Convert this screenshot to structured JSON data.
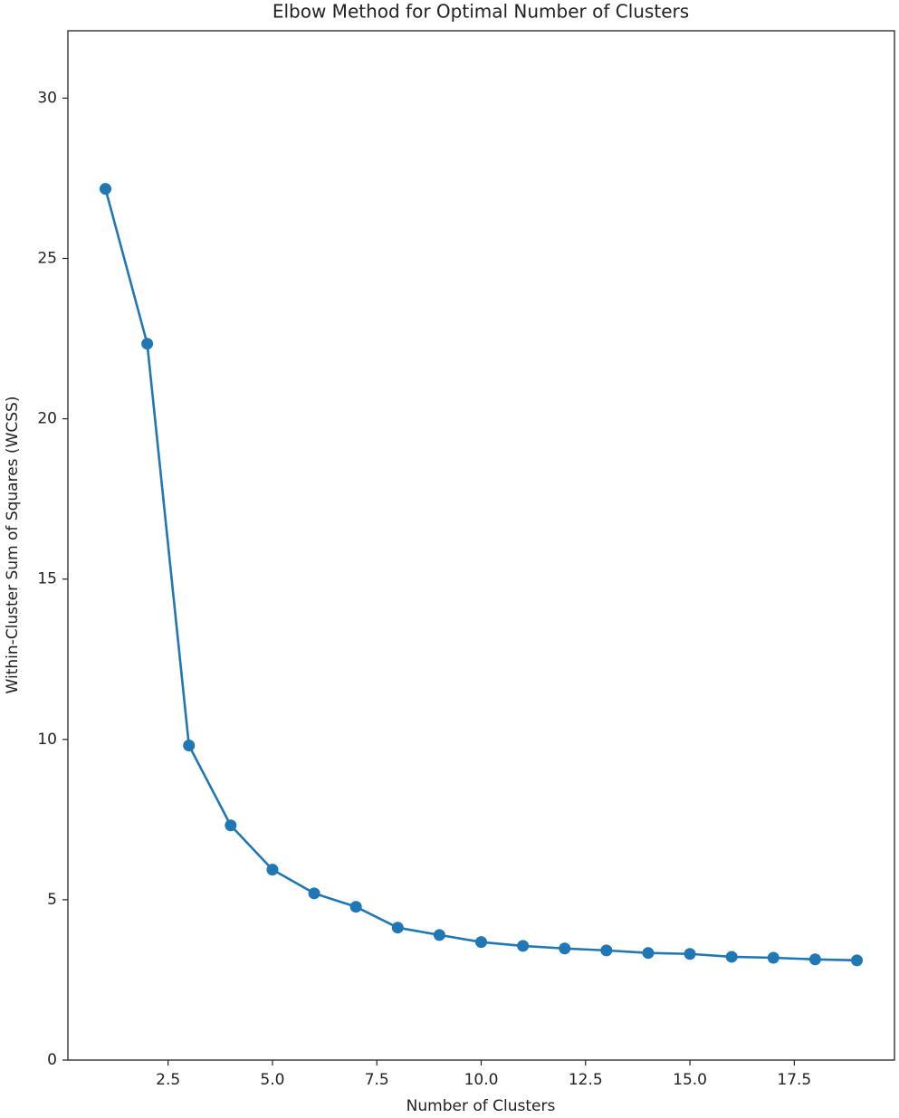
{
  "chart_data": {
    "type": "line",
    "title": "Elbow Method for Optimal Number of Clusters",
    "x_label": "Number of Clusters",
    "y_label": "Within-Cluster Sum of Squares (WCSS)",
    "x": [
      1,
      2,
      3,
      4,
      5,
      6,
      7,
      8,
      9,
      10,
      11,
      12,
      13,
      14,
      15,
      16,
      17,
      18,
      19
    ],
    "values": [
      27.17,
      22.34,
      9.81,
      7.32,
      5.94,
      5.2,
      4.78,
      4.13,
      3.9,
      3.68,
      3.56,
      3.48,
      3.42,
      3.34,
      3.31,
      3.22,
      3.19,
      3.14,
      3.11
    ],
    "color": "#1f77b4",
    "xlim": [
      0.1,
      19.9
    ],
    "ylim": [
      0,
      32.1
    ],
    "xticks": [
      2.5,
      {
        "value": 5,
        "label": "5.0"
      },
      7.5,
      {
        "value": 10,
        "label": "10.0"
      },
      12.5,
      {
        "value": 15,
        "label": "15.0"
      },
      17.5
    ],
    "yticks": [
      0,
      5,
      10,
      15,
      20,
      25,
      30
    ],
    "grid": false
  }
}
